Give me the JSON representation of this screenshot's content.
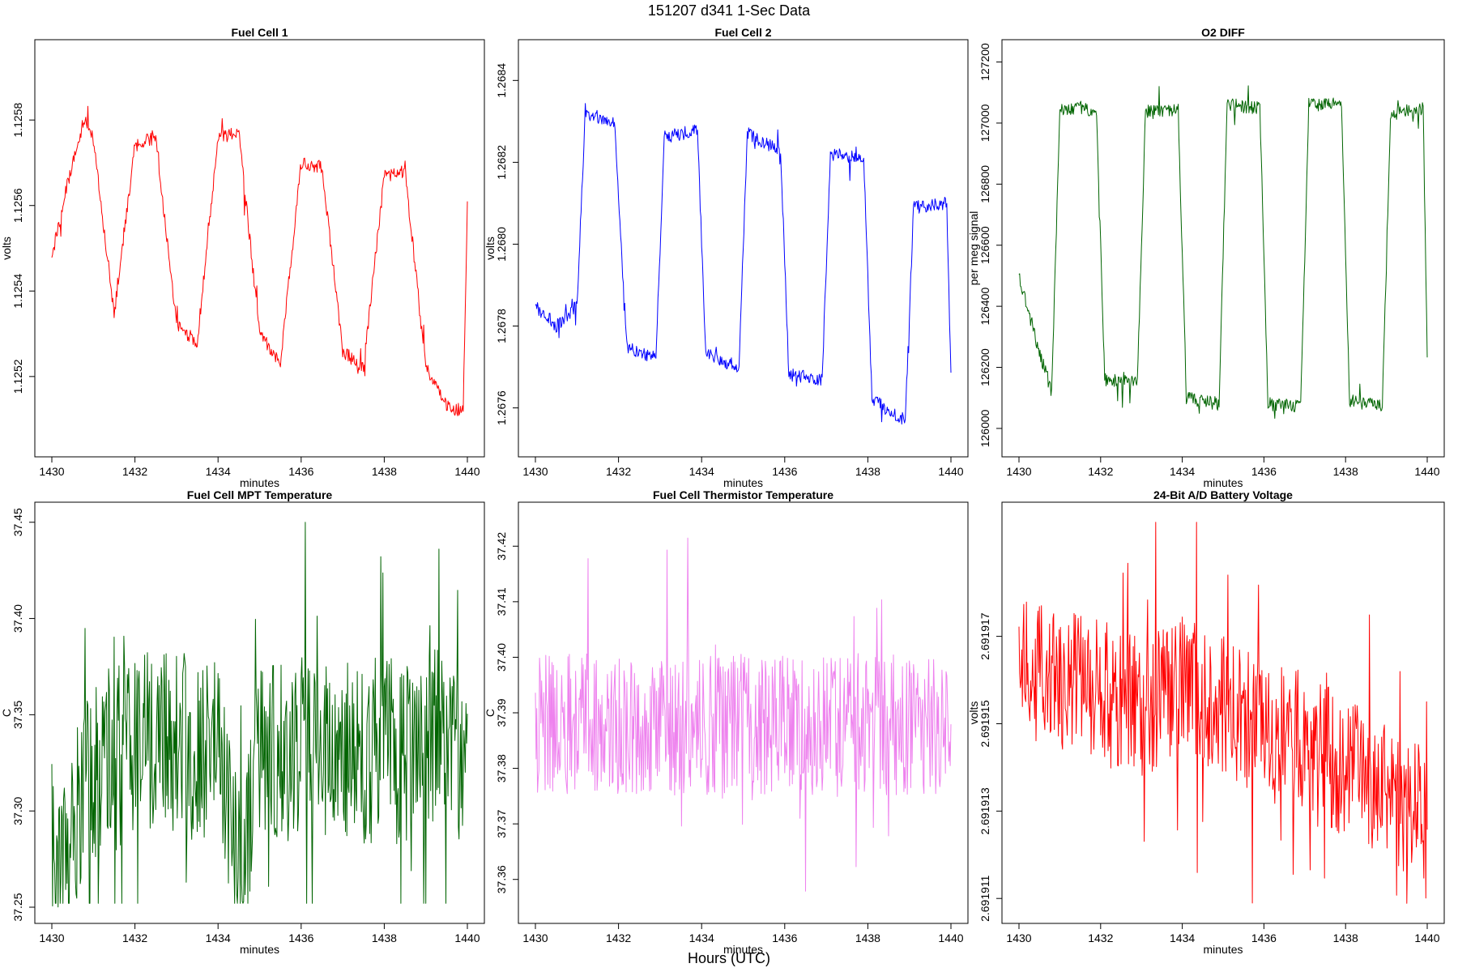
{
  "figure": {
    "title": "151207   d341   1-Sec Data",
    "bottom_label": "Hours (UTC)"
  },
  "chart_data": [
    {
      "type": "line",
      "title": "Fuel Cell 1",
      "xlabel": "minutes",
      "ylabel": "volts",
      "color": "#ff0000",
      "xlim": [
        1430,
        1440
      ],
      "ylim": [
        1.12505,
        1.12595
      ],
      "xticks": [
        1430,
        1432,
        1434,
        1436,
        1438,
        1440
      ],
      "yticks": [
        1.1252,
        1.1254,
        1.1256,
        1.1258
      ],
      "ytick_labels": [
        "1.1252",
        "1.1254",
        "1.1256",
        "1.1258"
      ],
      "pattern": {
        "kind": "square",
        "low": 1.12532,
        "high": 1.12575,
        "noise": 3.5e-05,
        "segments": [
          [
            1430.0,
            1.12547,
            1.12553
          ],
          [
            1430.2,
            1.12558,
            1.12582
          ],
          [
            1430.9,
            1.12582,
            1.12536
          ],
          [
            1431.9,
            1.12533,
            1.12576
          ],
          [
            1432.9,
            1.12576,
            1.12528
          ],
          [
            1433.8,
            1.12526,
            1.12578
          ],
          [
            1434.9,
            1.12578,
            1.12524
          ],
          [
            1435.8,
            1.12522,
            1.1257
          ],
          [
            1436.9,
            1.1257,
            1.12524
          ],
          [
            1437.8,
            1.12522,
            1.12568
          ],
          [
            1438.9,
            1.12566,
            1.12514
          ],
          [
            1439.9,
            1.12512,
            1.1256
          ]
        ]
      },
      "summary": {
        "x": [
          1430.0,
          1430.4,
          1430.8,
          1431.0,
          1431.5,
          1432.0,
          1432.5,
          1433.0,
          1433.5,
          1434.0,
          1434.5,
          1435.0,
          1435.5,
          1436.0,
          1436.5,
          1437.0,
          1437.5,
          1438.0,
          1438.5,
          1439.0,
          1439.5,
          1439.9,
          1440.0
        ],
        "y": [
          1.12548,
          1.12566,
          1.12581,
          1.12575,
          1.12535,
          1.12574,
          1.12576,
          1.12532,
          1.12528,
          1.12576,
          1.12577,
          1.1253,
          1.12523,
          1.1257,
          1.12569,
          1.12526,
          1.12522,
          1.12567,
          1.12568,
          1.12522,
          1.12513,
          1.12512,
          1.1256
        ]
      }
    },
    {
      "type": "line",
      "title": "Fuel Cell 2",
      "xlabel": "minutes",
      "ylabel": "volts",
      "color": "#0000ff",
      "xlim": [
        1430,
        1440
      ],
      "ylim": [
        1.26752,
        1.26846
      ],
      "xticks": [
        1430,
        1432,
        1434,
        1436,
        1438,
        1440
      ],
      "yticks": [
        1.2676,
        1.2678,
        1.268,
        1.2682,
        1.2684
      ],
      "ytick_labels": [
        "1.2676",
        "1.2678",
        "1.2680",
        "1.2682",
        "1.2684"
      ],
      "summary": {
        "x": [
          1430.0,
          1430.5,
          1431.0,
          1431.2,
          1431.9,
          1432.2,
          1432.9,
          1433.1,
          1433.9,
          1434.1,
          1434.9,
          1435.1,
          1435.9,
          1436.1,
          1436.9,
          1437.1,
          1437.9,
          1438.1,
          1438.9,
          1439.1,
          1439.9,
          1440.0
        ],
        "y": [
          1.26785,
          1.2678,
          1.26785,
          1.26832,
          1.2683,
          1.26775,
          1.26772,
          1.26826,
          1.26828,
          1.26773,
          1.2677,
          1.26827,
          1.26823,
          1.26768,
          1.26767,
          1.26822,
          1.26821,
          1.26762,
          1.26757,
          1.26809,
          1.2681,
          1.26768
        ]
      }
    },
    {
      "type": "line",
      "title": "O2 DIFF",
      "xlabel": "minutes",
      "ylabel": "per meg signal",
      "color": "#006400",
      "xlim": [
        1430,
        1440
      ],
      "ylim": [
        125960,
        127220
      ],
      "xticks": [
        1430,
        1432,
        1434,
        1436,
        1438,
        1440
      ],
      "yticks": [
        126000,
        126200,
        126400,
        126600,
        126800,
        127000,
        127200
      ],
      "ytick_labels": [
        "126000",
        "126200",
        "126400",
        "126600",
        "126800",
        "127000",
        "127200"
      ],
      "summary": {
        "x": [
          1430.0,
          1430.5,
          1430.8,
          1431.0,
          1431.5,
          1431.9,
          1432.1,
          1432.9,
          1433.1,
          1433.9,
          1434.1,
          1434.9,
          1435.1,
          1435.9,
          1436.1,
          1436.9,
          1437.1,
          1437.9,
          1438.1,
          1438.9,
          1439.1,
          1439.9,
          1440.0
        ],
        "y": [
          126500,
          126250,
          126120,
          127040,
          127050,
          127040,
          126160,
          126150,
          127040,
          127040,
          126100,
          126080,
          127060,
          127050,
          126080,
          126070,
          127060,
          127060,
          126090,
          126070,
          127030,
          127050,
          126230
        ]
      }
    },
    {
      "type": "line",
      "title": "Fuel Cell MPT Temperature",
      "xlabel": "minutes",
      "ylabel": "C",
      "color": "#006400",
      "xlim": [
        1430,
        1440
      ],
      "ylim": [
        37.25,
        37.452
      ],
      "xticks": [
        1430,
        1432,
        1434,
        1436,
        1438,
        1440
      ],
      "yticks": [
        37.25,
        37.3,
        37.35,
        37.4,
        37.45
      ],
      "ytick_labels": [
        "37.25",
        "37.30",
        "37.35",
        "37.40",
        "37.45"
      ],
      "summary": {
        "x": [
          1430.0,
          1430.05,
          1431.0,
          1431.5,
          1432.0,
          1432.5,
          1433.0,
          1434.0,
          1434.6,
          1435.0,
          1436.0,
          1437.0,
          1438.0,
          1438.5,
          1439.0,
          1439.5,
          1440.0
        ],
        "y": [
          37.31,
          37.262,
          37.318,
          37.33,
          37.33,
          37.34,
          37.335,
          37.33,
          37.258,
          37.33,
          37.332,
          37.33,
          37.332,
          37.33,
          37.34,
          37.335,
          37.33
        ],
        "min": 37.253,
        "max": 37.444,
        "range_low": [
          37.29,
          37.3
        ],
        "range_high": [
          37.36,
          37.38
        ]
      }
    },
    {
      "type": "line",
      "title": "Fuel Cell Thermistor Temperature",
      "xlabel": "minutes",
      "ylabel": "C",
      "color": "#ee82ee",
      "xlim": [
        1430,
        1440
      ],
      "ylim": [
        37.355,
        37.425
      ],
      "xticks": [
        1430,
        1432,
        1434,
        1436,
        1438,
        1440
      ],
      "yticks": [
        37.36,
        37.37,
        37.38,
        37.39,
        37.4,
        37.41,
        37.42
      ],
      "ytick_labels": [
        "37.36",
        "37.37",
        "37.38",
        "37.39",
        "37.40",
        "37.41",
        "37.42"
      ],
      "summary": {
        "x": [
          1430.0,
          1432.0,
          1434.0,
          1436.0,
          1438.0,
          1440.0
        ],
        "y": [
          37.388,
          37.388,
          37.388,
          37.388,
          37.388,
          37.388
        ],
        "min": 37.356,
        "max": 37.422,
        "range_low": [
          37.375,
          37.38
        ],
        "range_high": [
          37.396,
          37.401
        ]
      }
    },
    {
      "type": "line",
      "title": "24-Bit A/D Battery Voltage",
      "xlabel": "minutes",
      "ylabel": "volts",
      "color": "#ff0000",
      "xlim": [
        1430,
        1440
      ],
      "ylim": [
        2.6919108,
        2.6919197
      ],
      "xticks": [
        1430,
        1432,
        1434,
        1436,
        1438,
        1440
      ],
      "yticks": [
        2.691911,
        2.691913,
        2.691915,
        2.691917
      ],
      "ytick_labels": [
        "2.691911",
        "2.691913",
        "2.691915",
        "2.691917"
      ],
      "summary": {
        "x": [
          1430.0,
          1431.0,
          1432.0,
          1433.0,
          1434.0,
          1435.0,
          1436.0,
          1437.0,
          1438.0,
          1439.0,
          1440.0
        ],
        "y": [
          2.6919163,
          2.691916,
          2.6919158,
          2.6919154,
          2.6919158,
          2.6919155,
          2.6919148,
          2.6919146,
          2.691914,
          2.6919134,
          2.6919128
        ],
        "min": 2.6919118,
        "max": 2.691919,
        "range_low": [
          2.6919135,
          2.6919145
        ],
        "range_high": [
          2.6919165,
          2.6919175
        ]
      }
    }
  ]
}
